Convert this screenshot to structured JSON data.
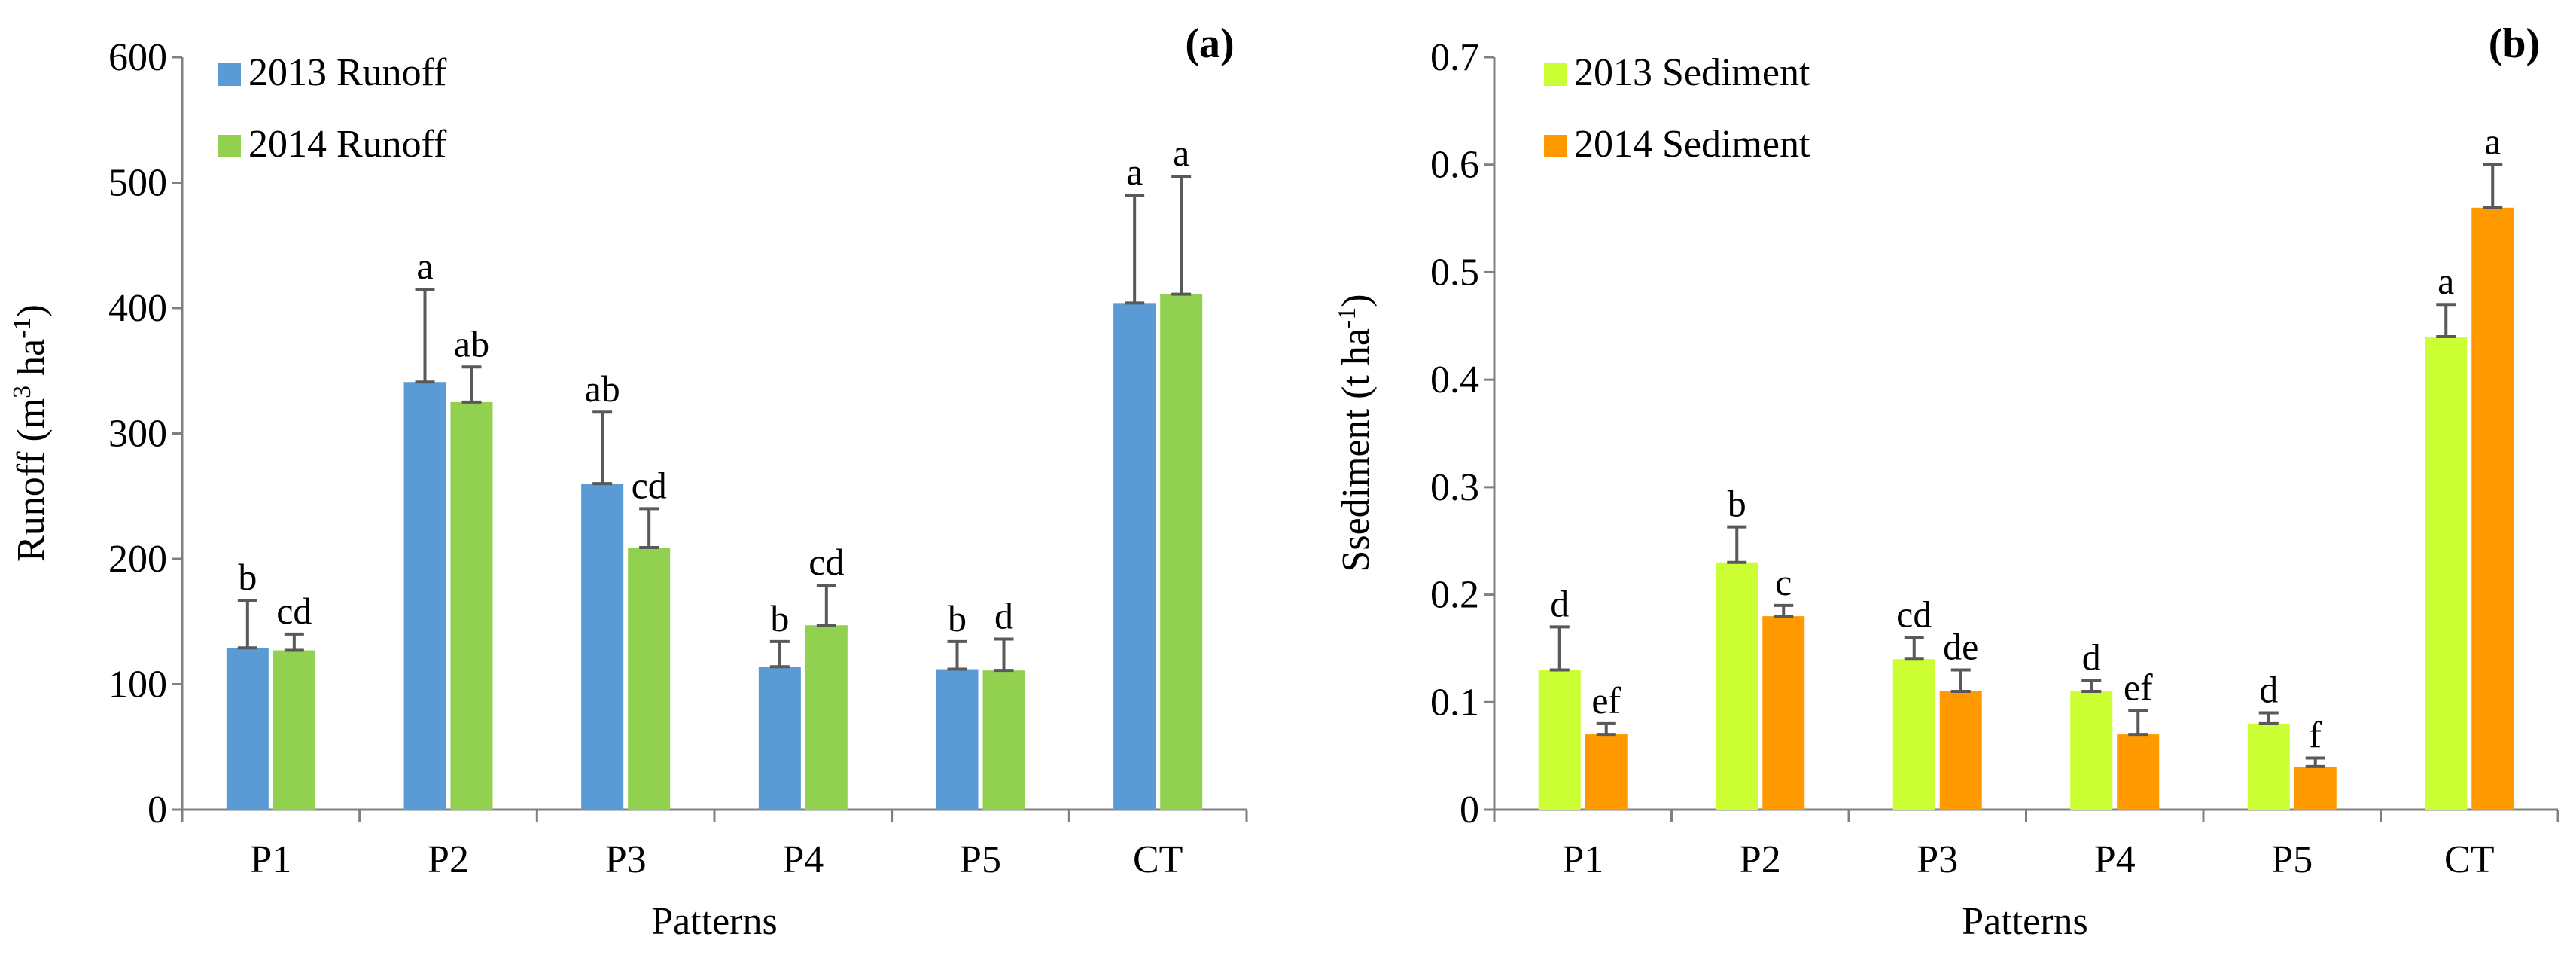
{
  "chart_data": [
    {
      "type": "bar",
      "panel_label": "(a)",
      "title": "",
      "xlabel": "Patterns",
      "ylabel_main": "Runoff (m",
      "ylabel_sup1": "3",
      "ylabel_mid": " ha",
      "ylabel_sup2": "-1",
      "ylabel_end": ")",
      "ylim": [
        0,
        600
      ],
      "yticks": [
        0,
        100,
        200,
        300,
        400,
        500,
        600
      ],
      "categories": [
        "P1",
        "P2",
        "P3",
        "P4",
        "P5",
        "CT"
      ],
      "legend_position": "top-left",
      "series": [
        {
          "name": "2013 Runoff",
          "color": "#5b9bd5",
          "values": [
            129,
            341,
            260,
            114,
            112,
            404
          ],
          "errors": [
            38,
            74,
            57,
            20,
            22,
            86
          ],
          "letters": [
            "b",
            "a",
            "ab",
            "b",
            "b",
            "a"
          ]
        },
        {
          "name": "2014 Runoff",
          "color": "#92d050",
          "values": [
            127,
            325,
            209,
            147,
            111,
            411
          ],
          "errors": [
            13,
            28,
            31,
            32,
            25,
            94
          ],
          "letters": [
            "cd",
            "ab",
            "cd",
            "cd",
            "d",
            "a"
          ]
        }
      ]
    },
    {
      "type": "bar",
      "panel_label": "(b)",
      "title": "",
      "xlabel": "Patterns",
      "ylabel_main": "Ssediment (t ha",
      "ylabel_sup1": "-1",
      "ylabel_mid": "",
      "ylabel_sup2": "",
      "ylabel_end": ")",
      "ylim": [
        0,
        0.7
      ],
      "yticks": [
        "0",
        "0.1",
        "0.2",
        "0.3",
        "0.4",
        "0.5",
        "0.6",
        "0.7"
      ],
      "categories": [
        "P1",
        "P2",
        "P3",
        "P4",
        "P5",
        "CT"
      ],
      "legend_position": "top-left",
      "series": [
        {
          "name": "2013 Sediment",
          "color": "#ccff33",
          "values": [
            0.13,
            0.23,
            0.14,
            0.11,
            0.08,
            0.44
          ],
          "errors": [
            0.04,
            0.033,
            0.02,
            0.01,
            0.01,
            0.03
          ],
          "letters": [
            "d",
            "b",
            "cd",
            "d",
            "d",
            "a"
          ]
        },
        {
          "name": "2014 Sediment",
          "color": "#ff9900",
          "values": [
            0.07,
            0.18,
            0.11,
            0.07,
            0.04,
            0.56
          ],
          "errors": [
            0.01,
            0.01,
            0.02,
            0.022,
            0.008,
            0.04
          ],
          "letters": [
            "ef",
            "c",
            "de",
            "ef",
            "f",
            "a"
          ]
        }
      ]
    }
  ]
}
